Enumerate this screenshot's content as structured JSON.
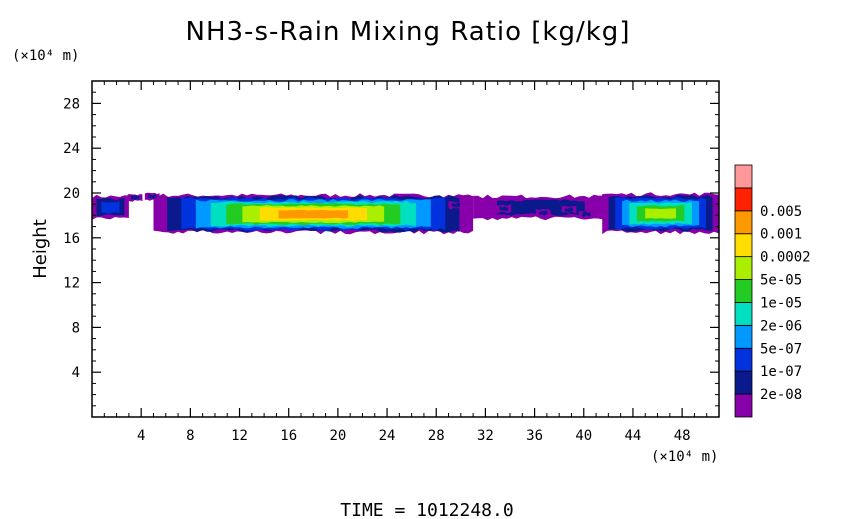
{
  "chart_data": {
    "type": "heatmap",
    "title": "NH3-s-Rain Mixing Ratio [kg/kg]",
    "xlabel": "",
    "ylabel": "Height",
    "x_unit": "(×10⁴ m)",
    "y_unit": "(×10⁴ m)",
    "xlim": [
      0,
      51
    ],
    "ylim": [
      0,
      30
    ],
    "xticks": [
      4,
      8,
      12,
      16,
      20,
      24,
      28,
      32,
      36,
      40,
      44,
      48
    ],
    "yticks": [
      4,
      8,
      12,
      16,
      20,
      24,
      28
    ],
    "colorbar": {
      "levels": [
        "2e-08",
        "1e-07",
        "5e-07",
        "2e-06",
        "1e-05",
        "5e-05",
        "0.0002",
        "0.001",
        "0.005"
      ],
      "colors": [
        "#8800aa",
        "#0a1a8c",
        "#0033dd",
        "#0099ff",
        "#00e0c0",
        "#22cc22",
        "#aaee00",
        "#ffdd00",
        "#ff9900",
        "#ff2200",
        "#ff9999"
      ]
    },
    "regions": [
      {
        "x": [
          0,
          3
        ],
        "y": [
          18,
          20
        ],
        "level": 2
      },
      {
        "x": [
          5,
          31
        ],
        "y": [
          16.7,
          20.1
        ],
        "level": 8
      },
      {
        "x": [
          31,
          42
        ],
        "y": [
          18,
          20
        ],
        "level": 1
      },
      {
        "x": [
          41.5,
          51
        ],
        "y": [
          16.7,
          20.2
        ],
        "level": 6
      }
    ],
    "footer": "TIME = 1012248.0"
  }
}
